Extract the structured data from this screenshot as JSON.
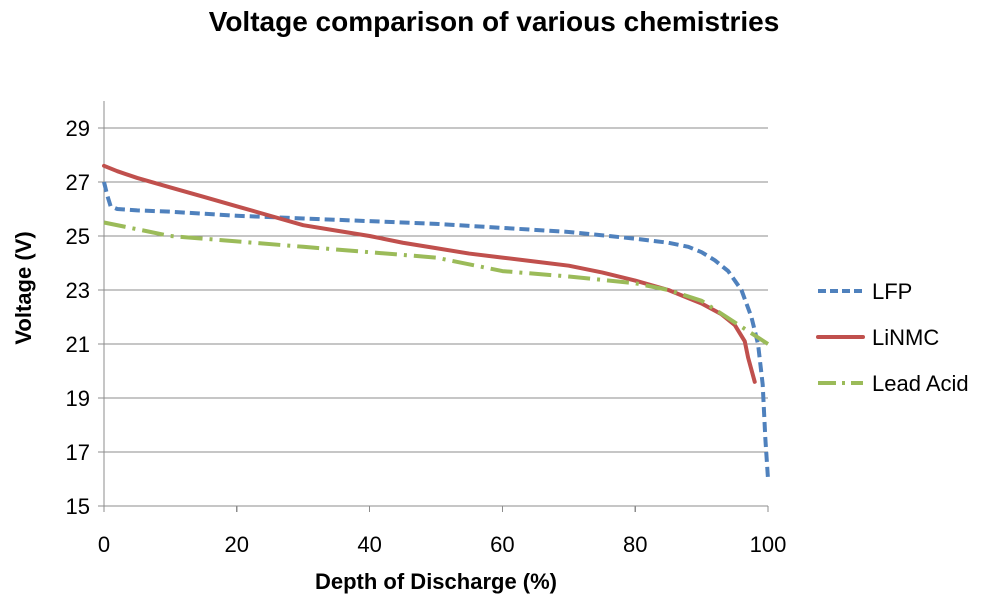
{
  "chart_data": {
    "type": "line",
    "title": "Voltage comparison of various chemistries",
    "xlabel": "Depth of Discharge (%)",
    "ylabel": "Voltage (V)",
    "xlim": [
      0,
      100
    ],
    "ylim": [
      15,
      30
    ],
    "x_ticks": [
      0,
      20,
      40,
      60,
      80,
      100
    ],
    "y_ticks": [
      15,
      17,
      19,
      21,
      23,
      25,
      27,
      29
    ],
    "grid": true,
    "legend_position": "right",
    "series": [
      {
        "name": "LFP",
        "color": "#4F81BD",
        "line_style": "dashed",
        "points": [
          [
            0,
            27.0
          ],
          [
            0.5,
            26.5
          ],
          [
            1,
            26.1
          ],
          [
            2,
            26.0
          ],
          [
            5,
            25.95
          ],
          [
            10,
            25.9
          ],
          [
            20,
            25.75
          ],
          [
            30,
            25.65
          ],
          [
            40,
            25.55
          ],
          [
            50,
            25.45
          ],
          [
            60,
            25.3
          ],
          [
            70,
            25.15
          ],
          [
            80,
            24.9
          ],
          [
            85,
            24.75
          ],
          [
            88,
            24.6
          ],
          [
            90,
            24.4
          ],
          [
            92,
            24.1
          ],
          [
            94,
            23.7
          ],
          [
            96,
            23.0
          ],
          [
            97.5,
            22.0
          ],
          [
            98.5,
            21.0
          ],
          [
            99.2,
            19.5
          ],
          [
            99.6,
            17.5
          ],
          [
            100,
            16.0
          ]
        ]
      },
      {
        "name": "LiNMC",
        "color": "#C0504D",
        "line_style": "solid",
        "points": [
          [
            0,
            27.6
          ],
          [
            2,
            27.4
          ],
          [
            5,
            27.15
          ],
          [
            10,
            26.8
          ],
          [
            15,
            26.45
          ],
          [
            20,
            26.1
          ],
          [
            25,
            25.75
          ],
          [
            30,
            25.4
          ],
          [
            35,
            25.2
          ],
          [
            40,
            25.0
          ],
          [
            45,
            24.75
          ],
          [
            50,
            24.55
          ],
          [
            55,
            24.35
          ],
          [
            60,
            24.2
          ],
          [
            65,
            24.05
          ],
          [
            70,
            23.9
          ],
          [
            75,
            23.65
          ],
          [
            80,
            23.35
          ],
          [
            85,
            23.0
          ],
          [
            88,
            22.7
          ],
          [
            90,
            22.5
          ],
          [
            93,
            22.1
          ],
          [
            95,
            21.7
          ],
          [
            96.5,
            21.1
          ],
          [
            97,
            20.5
          ],
          [
            98,
            19.6
          ]
        ]
      },
      {
        "name": "Lead Acid",
        "color": "#9BBB59",
        "line_style": "dash-dot",
        "points": [
          [
            0,
            25.5
          ],
          [
            5,
            25.25
          ],
          [
            10,
            25.0
          ],
          [
            20,
            24.8
          ],
          [
            30,
            24.6
          ],
          [
            40,
            24.4
          ],
          [
            50,
            24.2
          ],
          [
            60,
            23.7
          ],
          [
            70,
            23.5
          ],
          [
            80,
            23.25
          ],
          [
            85,
            23.0
          ],
          [
            90,
            22.6
          ],
          [
            95,
            21.8
          ],
          [
            100,
            21.0
          ]
        ]
      }
    ]
  }
}
